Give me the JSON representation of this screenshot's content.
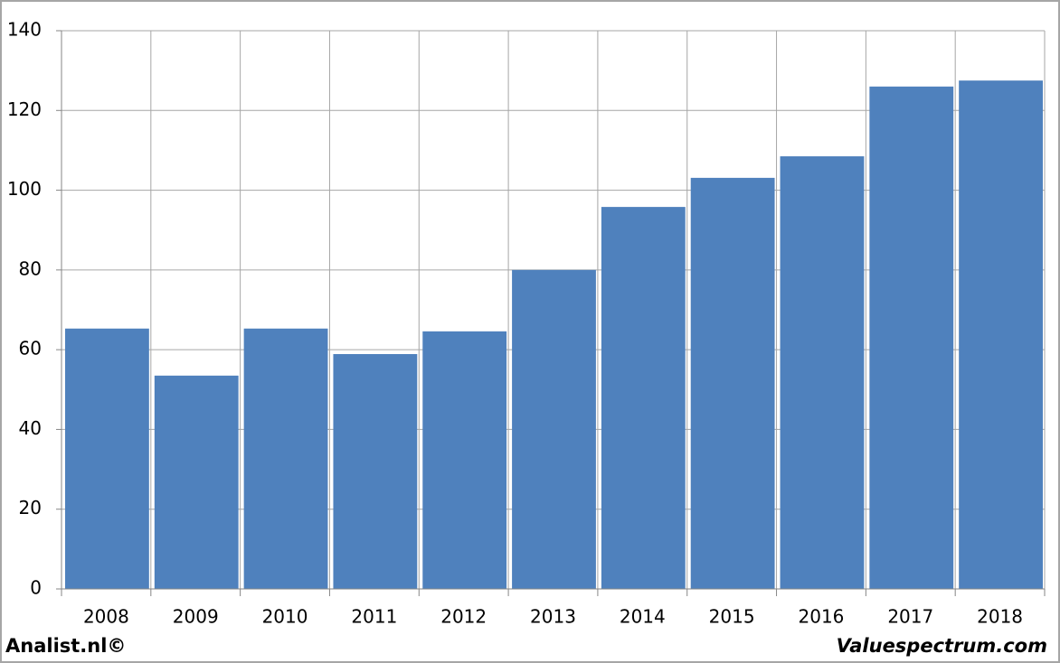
{
  "chart_data": {
    "type": "bar",
    "categories": [
      "2008",
      "2009",
      "2010",
      "2011",
      "2012",
      "2013",
      "2014",
      "2015",
      "2016",
      "2017",
      "2018"
    ],
    "values": [
      65.3,
      53.5,
      65.3,
      58.9,
      64.6,
      80.0,
      95.8,
      103.1,
      108.5,
      126.0,
      127.5
    ],
    "color": "#4f81bd",
    "ylim": [
      0,
      140
    ],
    "yticks": [
      0,
      20,
      40,
      60,
      80,
      100,
      120,
      140
    ],
    "grid": true
  },
  "footer": {
    "left": "Analist.nl©",
    "right": "Valuespectrum.com"
  }
}
